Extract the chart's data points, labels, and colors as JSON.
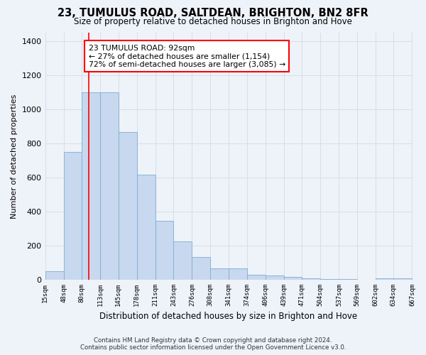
{
  "title": "23, TUMULUS ROAD, SALTDEAN, BRIGHTON, BN2 8FR",
  "subtitle": "Size of property relative to detached houses in Brighton and Hove",
  "xlabel": "Distribution of detached houses by size in Brighton and Hove",
  "ylabel": "Number of detached properties",
  "bar_color": "#c8d8ee",
  "bar_edge_color": "#7aafd4",
  "background_color": "#eef2f9",
  "grid_color": "#d8dde8",
  "property_line_x": 92,
  "property_line_color": "red",
  "annotation_text": "23 TUMULUS ROAD: 92sqm\n← 27% of detached houses are smaller (1,154)\n72% of semi-detached houses are larger (3,085) →",
  "footnote": "Contains HM Land Registry data © Crown copyright and database right 2024.\nContains public sector information licensed under the Open Government Licence v3.0.",
  "bin_edges": [
    15,
    48,
    80,
    113,
    145,
    178,
    211,
    243,
    276,
    308,
    341,
    374,
    406,
    439,
    471,
    504,
    537,
    569,
    602,
    634,
    667
  ],
  "bar_heights": [
    50,
    750,
    1100,
    1100,
    865,
    615,
    345,
    225,
    135,
    65,
    65,
    30,
    25,
    15,
    10,
    5,
    5,
    0,
    10,
    10
  ],
  "ylim": [
    0,
    1450
  ],
  "yticks": [
    0,
    200,
    400,
    600,
    800,
    1000,
    1200,
    1400
  ]
}
